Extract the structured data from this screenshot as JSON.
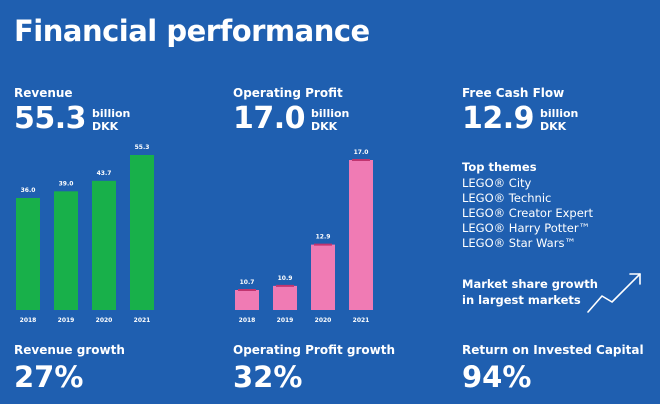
{
  "title": "Financial performance",
  "revenue": {
    "label": "Revenue",
    "value": "55.3",
    "unit_line1": "billion",
    "unit_line2": "DKK",
    "growth_label": "Revenue growth",
    "growth_value": "27%"
  },
  "operating_profit": {
    "label": "Operating Profit",
    "value": "17.0",
    "unit_line1": "billion",
    "unit_line2": "DKK",
    "growth_label": "Operating Profit growth",
    "growth_value": "32%"
  },
  "free_cash_flow": {
    "label": "Free Cash Flow",
    "value": "12.9",
    "unit_line1": "billion",
    "unit_line2": "DKK",
    "roic_label": "Return on Invested Capital",
    "roic_value": "94%"
  },
  "top_themes": {
    "title": "Top themes",
    "items": [
      "LEGO® City",
      "LEGO® Technic",
      "LEGO® Creator Expert",
      "LEGO® Harry Potter™",
      "LEGO® Star Wars™"
    ]
  },
  "market_share": {
    "line1": "Market share growth",
    "line2": "in largest markets",
    "icon": "trend-up-arrow-icon"
  },
  "colors": {
    "background": "#1f5fb0",
    "revenue_bar": "#18b04a",
    "profit_bar": "#f07bb4"
  },
  "chart_data": [
    {
      "type": "bar",
      "title": "Revenue",
      "categories": [
        "2018",
        "2019",
        "2020",
        "2021"
      ],
      "values": [
        36.0,
        39.0,
        43.7,
        55.3
      ],
      "value_labels": [
        "36.0",
        "39.0",
        "43.7",
        "55.3"
      ],
      "ylim": [
        0,
        55.3
      ],
      "grid": false
    },
    {
      "type": "bar",
      "title": "Operating Profit",
      "categories": [
        "2018",
        "2019",
        "2020",
        "2021"
      ],
      "values": [
        10.7,
        10.9,
        12.9,
        17.0
      ],
      "value_labels": [
        "10.7",
        "10.9",
        "12.9",
        "17.0"
      ],
      "ylim": [
        10.0,
        17.0
      ],
      "grid": false,
      "error_bars": true
    }
  ]
}
